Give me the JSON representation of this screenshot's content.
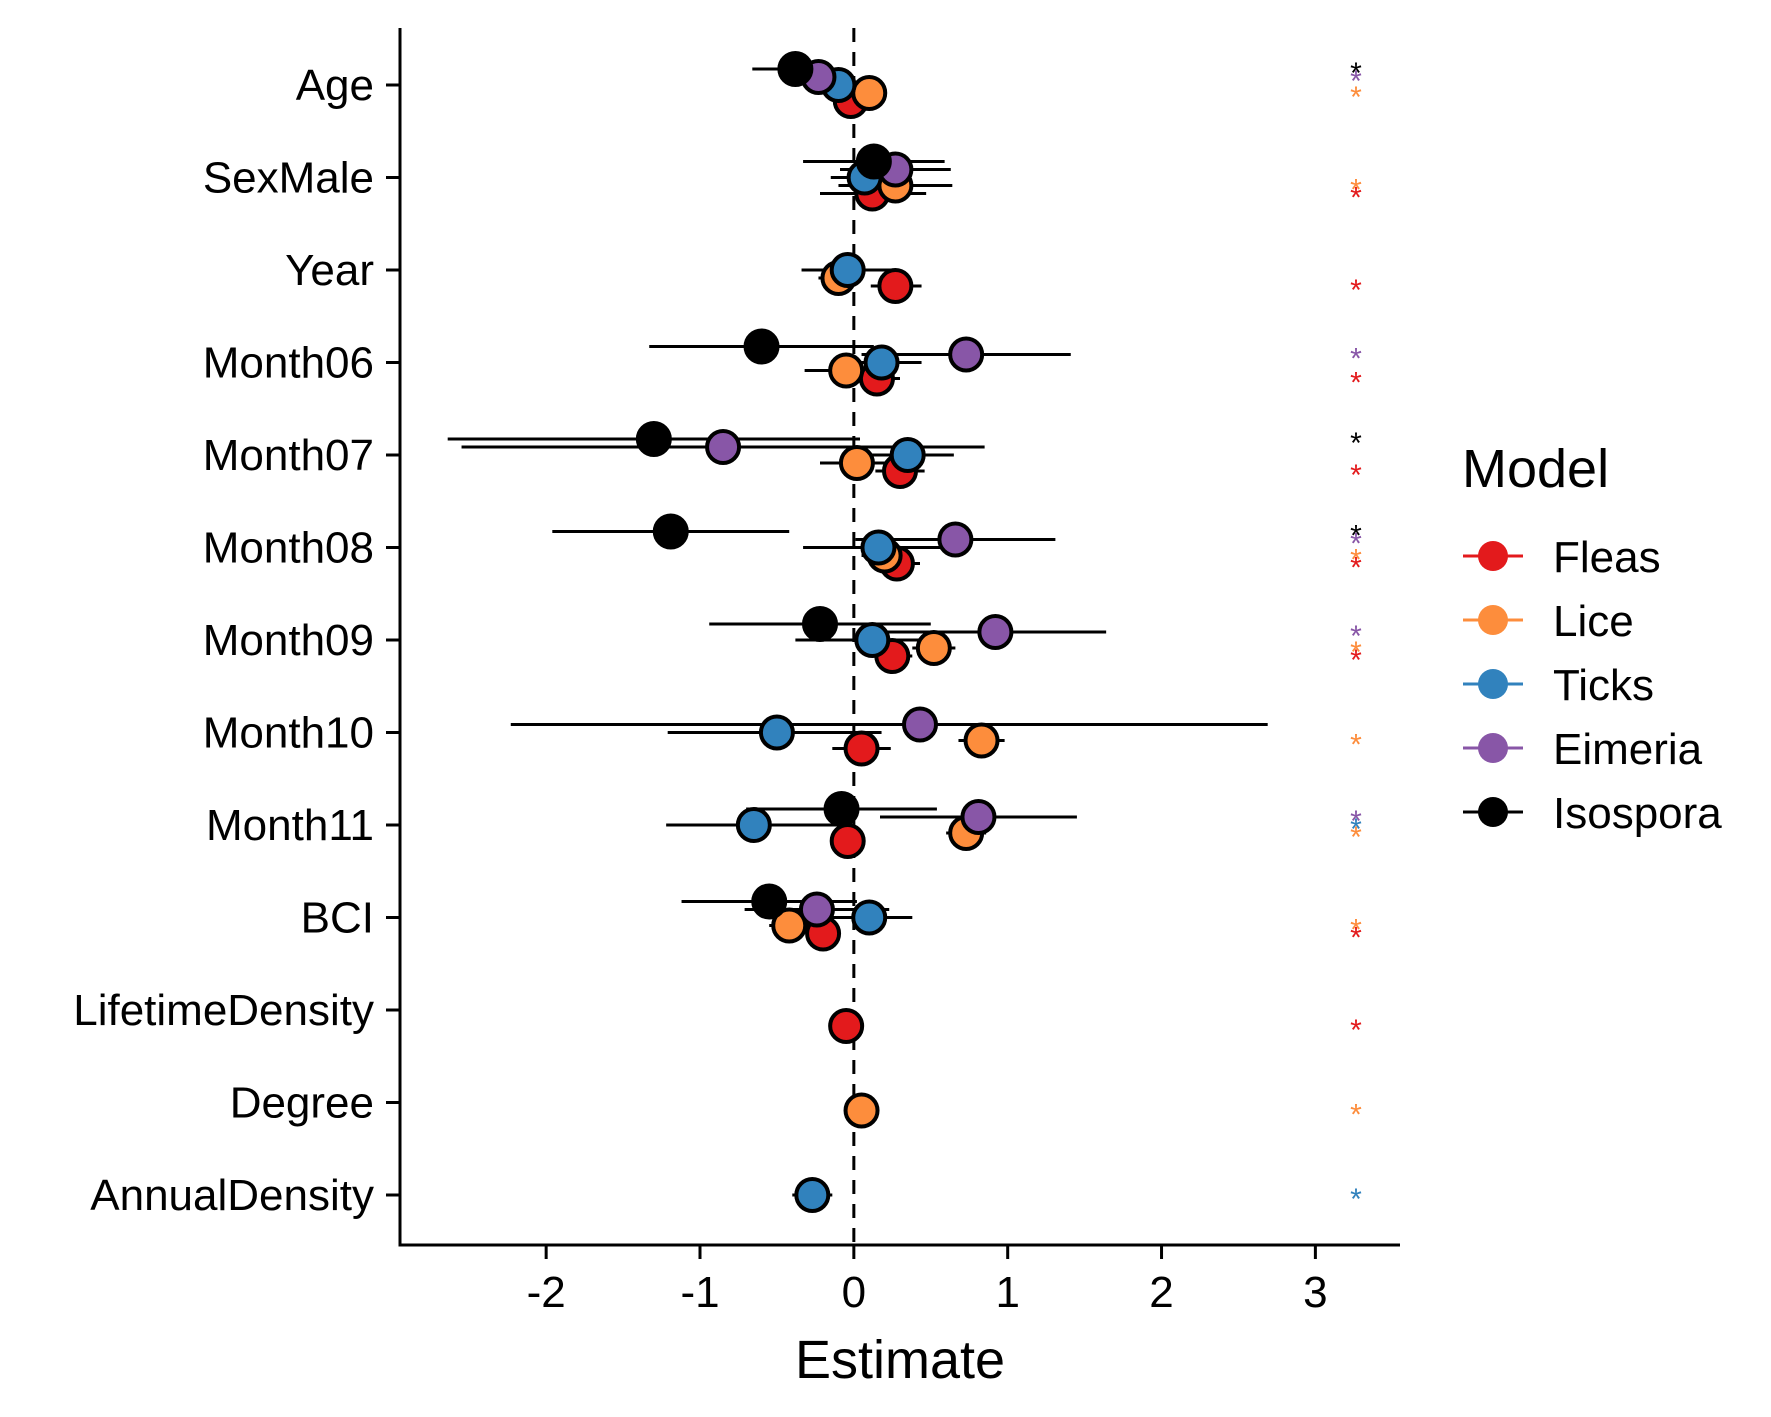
{
  "chart_data": {
    "type": "scatter",
    "title": "",
    "xlabel": "Estimate",
    "ylabel": "",
    "xlim": [
      -2.95,
      3.55
    ],
    "x_ticks": [
      -2,
      -1,
      0,
      1,
      2,
      3
    ],
    "x_tick_labels": [
      "-2",
      "-1",
      "0",
      "1",
      "2",
      "3"
    ],
    "reference_line_x": 0,
    "grid": false,
    "categories": [
      "Age",
      "SexMale",
      "Year",
      "Month06",
      "Month07",
      "Month08",
      "Month09",
      "Month10",
      "Month11",
      "BCI",
      "LifetimeDensity",
      "Degree",
      "AnnualDensity"
    ],
    "legend": {
      "title": "Model",
      "position": "right"
    },
    "significance_marker": "*",
    "series": [
      {
        "name": "Fleas",
        "color": "#e31a1c",
        "points": [
          {
            "category": "Age",
            "estimate": -0.02,
            "lower": -0.07,
            "upper": 0.03,
            "significant": false
          },
          {
            "category": "SexMale",
            "estimate": 0.12,
            "lower": -0.22,
            "upper": 0.47,
            "significant": true
          },
          {
            "category": "Year",
            "estimate": 0.27,
            "lower": 0.11,
            "upper": 0.44,
            "significant": true
          },
          {
            "category": "Month06",
            "estimate": 0.15,
            "lower": 0.0,
            "upper": 0.3,
            "significant": true
          },
          {
            "category": "Month07",
            "estimate": 0.3,
            "lower": 0.14,
            "upper": 0.46,
            "significant": true
          },
          {
            "category": "Month08",
            "estimate": 0.28,
            "lower": 0.12,
            "upper": 0.43,
            "significant": true
          },
          {
            "category": "Month09",
            "estimate": 0.25,
            "lower": 0.12,
            "upper": 0.38,
            "significant": true
          },
          {
            "category": "Month10",
            "estimate": 0.05,
            "lower": -0.14,
            "upper": 0.24,
            "significant": false
          },
          {
            "category": "Month11",
            "estimate": -0.04,
            "lower": -0.15,
            "upper": 0.07,
            "significant": false
          },
          {
            "category": "BCI",
            "estimate": -0.2,
            "lower": -0.3,
            "upper": -0.1,
            "significant": true
          },
          {
            "category": "LifetimeDensity",
            "estimate": -0.05,
            "lower": -0.1,
            "upper": 0.0,
            "significant": true
          }
        ]
      },
      {
        "name": "Lice",
        "color": "#fd8d3c",
        "points": [
          {
            "category": "Age",
            "estimate": 0.1,
            "lower": 0.05,
            "upper": 0.15,
            "significant": true
          },
          {
            "category": "SexMale",
            "estimate": 0.27,
            "lower": -0.1,
            "upper": 0.64,
            "significant": true
          },
          {
            "category": "Year",
            "estimate": -0.1,
            "lower": -0.23,
            "upper": 0.03,
            "significant": false
          },
          {
            "category": "Month06",
            "estimate": -0.05,
            "lower": -0.32,
            "upper": 0.22,
            "significant": false
          },
          {
            "category": "Month07",
            "estimate": 0.02,
            "lower": -0.22,
            "upper": 0.26,
            "significant": false
          },
          {
            "category": "Month08",
            "estimate": 0.2,
            "lower": 0.05,
            "upper": 0.35,
            "significant": true
          },
          {
            "category": "Month09",
            "estimate": 0.52,
            "lower": 0.38,
            "upper": 0.66,
            "significant": true
          },
          {
            "category": "Month10",
            "estimate": 0.83,
            "lower": 0.68,
            "upper": 0.98,
            "significant": true
          },
          {
            "category": "Month11",
            "estimate": 0.73,
            "lower": 0.6,
            "upper": 0.86,
            "significant": true
          },
          {
            "category": "BCI",
            "estimate": -0.42,
            "lower": -0.55,
            "upper": -0.29,
            "significant": true
          },
          {
            "category": "Degree",
            "estimate": 0.05,
            "lower": 0.0,
            "upper": 0.1,
            "significant": true
          }
        ]
      },
      {
        "name": "Ticks",
        "color": "#3182bd",
        "points": [
          {
            "category": "Age",
            "estimate": -0.1,
            "lower": -0.18,
            "upper": -0.02,
            "significant": false
          },
          {
            "category": "SexMale",
            "estimate": 0.07,
            "lower": -0.15,
            "upper": 0.29,
            "significant": false
          },
          {
            "category": "Year",
            "estimate": -0.04,
            "lower": -0.34,
            "upper": 0.26,
            "significant": false
          },
          {
            "category": "Month06",
            "estimate": 0.18,
            "lower": -0.08,
            "upper": 0.44,
            "significant": false
          },
          {
            "category": "Month07",
            "estimate": 0.35,
            "lower": 0.05,
            "upper": 0.65,
            "significant": false
          },
          {
            "category": "Month08",
            "estimate": 0.16,
            "lower": -0.33,
            "upper": 0.65,
            "significant": false
          },
          {
            "category": "Month09",
            "estimate": 0.12,
            "lower": -0.38,
            "upper": 0.62,
            "significant": false
          },
          {
            "category": "Month10",
            "estimate": -0.5,
            "lower": -1.21,
            "upper": 0.18,
            "significant": false
          },
          {
            "category": "Month11",
            "estimate": -0.65,
            "lower": -1.22,
            "upper": -0.08,
            "significant": true
          },
          {
            "category": "BCI",
            "estimate": 0.1,
            "lower": -0.18,
            "upper": 0.38,
            "significant": false
          },
          {
            "category": "AnnualDensity",
            "estimate": -0.27,
            "lower": -0.4,
            "upper": -0.14,
            "significant": true
          }
        ]
      },
      {
        "name": "Eimeria",
        "color": "#8856a7",
        "points": [
          {
            "category": "Age",
            "estimate": -0.23,
            "lower": -0.35,
            "upper": -0.11,
            "significant": true
          },
          {
            "category": "SexMale",
            "estimate": 0.27,
            "lower": -0.09,
            "upper": 0.63,
            "significant": false
          },
          {
            "category": "Month06",
            "estimate": 0.73,
            "lower": 0.05,
            "upper": 1.41,
            "significant": true
          },
          {
            "category": "Month07",
            "estimate": -0.85,
            "lower": -2.55,
            "upper": 0.85,
            "significant": false
          },
          {
            "category": "Month08",
            "estimate": 0.66,
            "lower": 0.01,
            "upper": 1.31,
            "significant": true
          },
          {
            "category": "Month09",
            "estimate": 0.92,
            "lower": 0.2,
            "upper": 1.64,
            "significant": true
          },
          {
            "category": "Month10",
            "estimate": 0.43,
            "lower": -2.23,
            "upper": 2.69,
            "significant": false
          },
          {
            "category": "Month11",
            "estimate": 0.81,
            "lower": 0.17,
            "upper": 1.45,
            "significant": true
          },
          {
            "category": "BCI",
            "estimate": -0.24,
            "lower": -0.71,
            "upper": 0.23,
            "significant": false
          }
        ]
      },
      {
        "name": "Isospora",
        "color": "#000000",
        "points": [
          {
            "category": "Age",
            "estimate": -0.38,
            "lower": -0.66,
            "upper": -0.1,
            "significant": true
          },
          {
            "category": "SexMale",
            "estimate": 0.13,
            "lower": -0.33,
            "upper": 0.59,
            "significant": false
          },
          {
            "category": "Month06",
            "estimate": -0.6,
            "lower": -1.33,
            "upper": 0.13,
            "significant": false
          },
          {
            "category": "Month07",
            "estimate": -1.3,
            "lower": -2.64,
            "upper": 0.04,
            "significant": true
          },
          {
            "category": "Month08",
            "estimate": -1.19,
            "lower": -1.96,
            "upper": -0.42,
            "significant": true
          },
          {
            "category": "Month09",
            "estimate": -0.22,
            "lower": -0.94,
            "upper": 0.5,
            "significant": false
          },
          {
            "category": "Month11",
            "estimate": -0.08,
            "lower": -0.7,
            "upper": 0.54,
            "significant": false
          },
          {
            "category": "BCI",
            "estimate": -0.55,
            "lower": -1.12,
            "upper": 0.02,
            "significant": false
          }
        ]
      }
    ]
  }
}
